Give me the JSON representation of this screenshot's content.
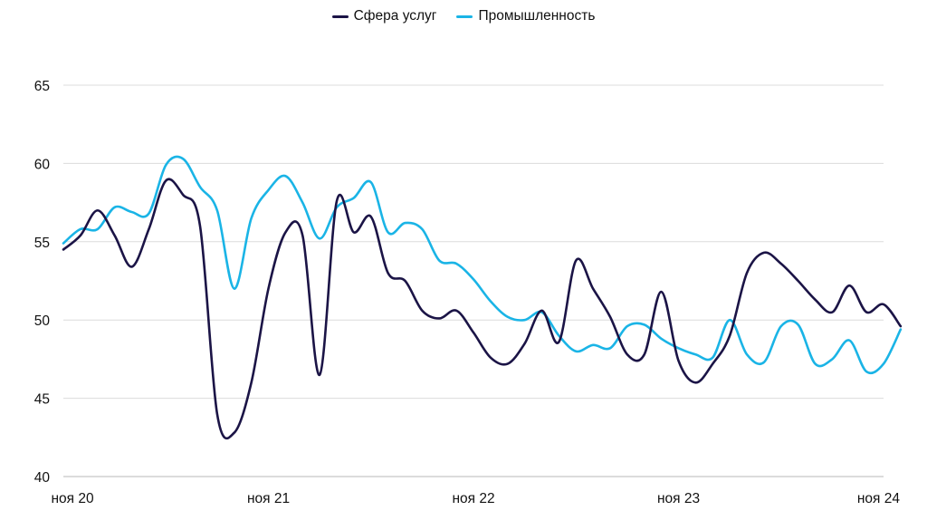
{
  "chart_data": {
    "type": "line",
    "title": "",
    "xlabel": "",
    "ylabel": "",
    "ylim": [
      40,
      65
    ],
    "yticks": [
      40,
      45,
      50,
      55,
      60,
      65
    ],
    "xticks": [
      {
        "x": 0,
        "label": "ноя 20"
      },
      {
        "x": 12,
        "label": "ноя 21"
      },
      {
        "x": 24,
        "label": "ноя 22"
      },
      {
        "x": 36,
        "label": "ноя 23"
      },
      {
        "x": 48,
        "label": "ноя 24"
      }
    ],
    "xlim": [
      0,
      48
    ],
    "grid": true,
    "legend_position": "top-center",
    "series": [
      {
        "name": "Сфера услуг",
        "color": "#1b1446",
        "values": [
          54.5,
          55.4,
          57.0,
          55.4,
          53.4,
          55.8,
          58.9,
          58.0,
          56.0,
          44.0,
          42.8,
          46.0,
          52.0,
          55.6,
          55.4,
          46.5,
          57.6,
          55.6,
          56.6,
          53.0,
          52.5,
          50.6,
          50.1,
          50.6,
          49.2,
          47.6,
          47.2,
          48.5,
          50.6,
          48.6,
          53.8,
          52.0,
          50.2,
          47.8,
          47.8,
          51.8,
          47.4,
          46.0,
          47.2,
          49.0,
          53.0,
          54.3,
          53.6,
          52.5,
          51.3,
          50.5,
          52.2,
          50.5,
          51.0,
          49.6
        ]
      },
      {
        "name": "Промышленность",
        "color": "#1ab4e6",
        "values": [
          54.9,
          55.8,
          55.8,
          57.2,
          56.9,
          56.8,
          59.9,
          60.3,
          58.5,
          57.0,
          52.0,
          56.5,
          58.3,
          59.2,
          57.5,
          55.2,
          57.2,
          57.8,
          58.8,
          55.6,
          56.2,
          55.8,
          53.8,
          53.6,
          52.6,
          51.2,
          50.2,
          50.0,
          50.5,
          49.0,
          48.0,
          48.4,
          48.2,
          49.6,
          49.7,
          48.8,
          48.2,
          47.8,
          47.6,
          50.0,
          47.8,
          47.3,
          49.6,
          49.7,
          47.2,
          47.5,
          48.7,
          46.7,
          47.2,
          49.4
        ]
      }
    ]
  }
}
